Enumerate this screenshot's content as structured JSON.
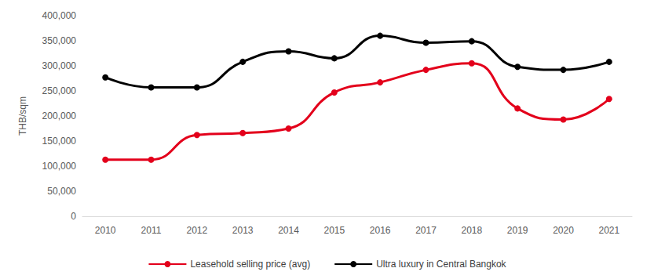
{
  "chart_data": {
    "type": "line",
    "ylabel": "THB/sqm",
    "categories": [
      "2010",
      "2011",
      "2012",
      "2013",
      "2014",
      "2015",
      "2016",
      "2017",
      "2018",
      "2019",
      "2020",
      "2021"
    ],
    "series": [
      {
        "name": "Leasehold selling price (avg)",
        "color": "#e3001b",
        "marker": "circle",
        "line_style": "solid",
        "values": [
          113000,
          113000,
          162000,
          166000,
          175000,
          247000,
          267000,
          292000,
          305000,
          215000,
          193000,
          234000
        ]
      },
      {
        "name": "Ultra luxury in Central Bangkok",
        "color": "#000000",
        "marker": "circle",
        "line_style": "solid",
        "values": [
          277000,
          257000,
          257000,
          308000,
          329000,
          315000,
          360000,
          346000,
          349000,
          298000,
          292000,
          308000
        ]
      }
    ],
    "ylim": [
      0,
      400000
    ],
    "yticks": [
      {
        "value": 0,
        "label": "0"
      },
      {
        "value": 50000,
        "label": "50,000"
      },
      {
        "value": 100000,
        "label": "100,000"
      },
      {
        "value": 150000,
        "label": "150,000"
      },
      {
        "value": 200000,
        "label": "200,000"
      },
      {
        "value": 250000,
        "label": "250,000"
      },
      {
        "value": 300000,
        "label": "300,000"
      },
      {
        "value": 350000,
        "label": "350,000"
      },
      {
        "value": 400000,
        "label": "400,000"
      }
    ],
    "grid": false,
    "legend": "bottom"
  }
}
